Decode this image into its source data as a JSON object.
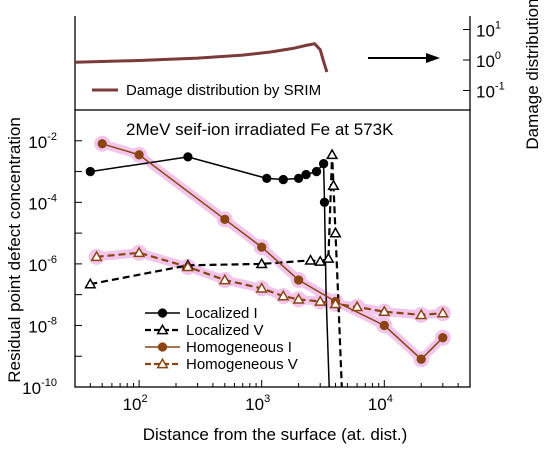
{
  "chart_data": {
    "type": "line",
    "x_scale": "log",
    "y_scale": "log",
    "xlim": [
      30,
      50000
    ],
    "ylim": [
      1e-10,
      0.1
    ],
    "xlabel": "Distance from the surface (at. dist.)",
    "ylabel": "Residual point defect concentration",
    "y2label": "Damage distribution",
    "x_ticks": [
      {
        "value": 100,
        "base": "10",
        "exp": "2"
      },
      {
        "value": 1000,
        "base": "10",
        "exp": "3"
      },
      {
        "value": 10000,
        "base": "10",
        "exp": "4"
      }
    ],
    "y_ticks": [
      {
        "value": 0.01,
        "base": "10",
        "exp": "-2"
      },
      {
        "value": 0.0001,
        "base": "10",
        "exp": "-4"
      },
      {
        "value": 1e-06,
        "base": "10",
        "exp": "-6"
      },
      {
        "value": 1e-08,
        "base": "10",
        "exp": "-8"
      },
      {
        "value": 1e-10,
        "base": "10",
        "exp": "-10"
      }
    ],
    "y2_ticks": [
      {
        "value": 10,
        "base": "10",
        "exp": "1"
      },
      {
        "value": 1,
        "base": "10",
        "exp": "0"
      },
      {
        "value": 0.1,
        "base": "10",
        "exp": "-1"
      }
    ],
    "annotation": "2MeV seif-ion irradiated Fe at 573K",
    "damage_legend": "Damage distribution by SRIM",
    "damage_color": "#7b3b3b",
    "damage_curve": {
      "x": [
        30,
        100,
        300,
        700,
        1200,
        1800,
        2300,
        2700,
        3000,
        3200,
        3400
      ],
      "y": [
        0.85,
        0.96,
        1.15,
        1.45,
        1.85,
        2.4,
        3.0,
        3.4,
        2.2,
        0.9,
        0.4
      ]
    },
    "series": [
      {
        "name": "Localized I",
        "color": "#000000",
        "dash": false,
        "marker": "circle",
        "filled": true,
        "glow": false,
        "x": [
          40,
          250,
          1100,
          1500,
          2000,
          2300,
          2800,
          3200,
          3250,
          3350,
          3550
        ],
        "y": [
          0.001,
          0.003,
          0.0006,
          0.00055,
          0.0006,
          0.0008,
          0.001,
          0.0018,
          0.0001,
          1e-07,
          1e-10
        ]
      },
      {
        "name": "Localized V",
        "color": "#000000",
        "dash": true,
        "marker": "triangle",
        "filled": false,
        "glow": false,
        "x": [
          40,
          250,
          1000,
          2500,
          3000,
          3500,
          3750,
          3850,
          4000,
          4200,
          4500
        ],
        "y": [
          2.2e-07,
          9e-07,
          1e-06,
          1.3e-06,
          1.2e-06,
          1.5e-06,
          0.0035,
          0.00035,
          1e-05,
          1e-07,
          1e-10
        ]
      },
      {
        "name": "Homogeneous I",
        "color": "#8b4513",
        "dash": false,
        "marker": "circle",
        "filled": true,
        "glow": true,
        "x": [
          50,
          100,
          500,
          1000,
          2000,
          4000,
          10000,
          20000,
          30000
        ],
        "y": [
          0.008,
          0.0035,
          2.8e-05,
          3.5e-06,
          3e-07,
          6e-08,
          1e-08,
          8e-10,
          4e-09
        ]
      },
      {
        "name": "Homogeneous V",
        "color": "#8b4513",
        "dash": true,
        "marker": "triangle",
        "filled": false,
        "glow": true,
        "x": [
          45,
          100,
          250,
          500,
          1000,
          1500,
          2000,
          3000,
          4000,
          6000,
          10000,
          20000,
          30000
        ],
        "y": [
          1.7e-06,
          2.3e-06,
          8e-07,
          3e-07,
          1.6e-07,
          9e-08,
          7e-08,
          6e-08,
          5e-08,
          4e-08,
          2.8e-08,
          2.2e-08,
          2.5e-08
        ]
      }
    ]
  }
}
